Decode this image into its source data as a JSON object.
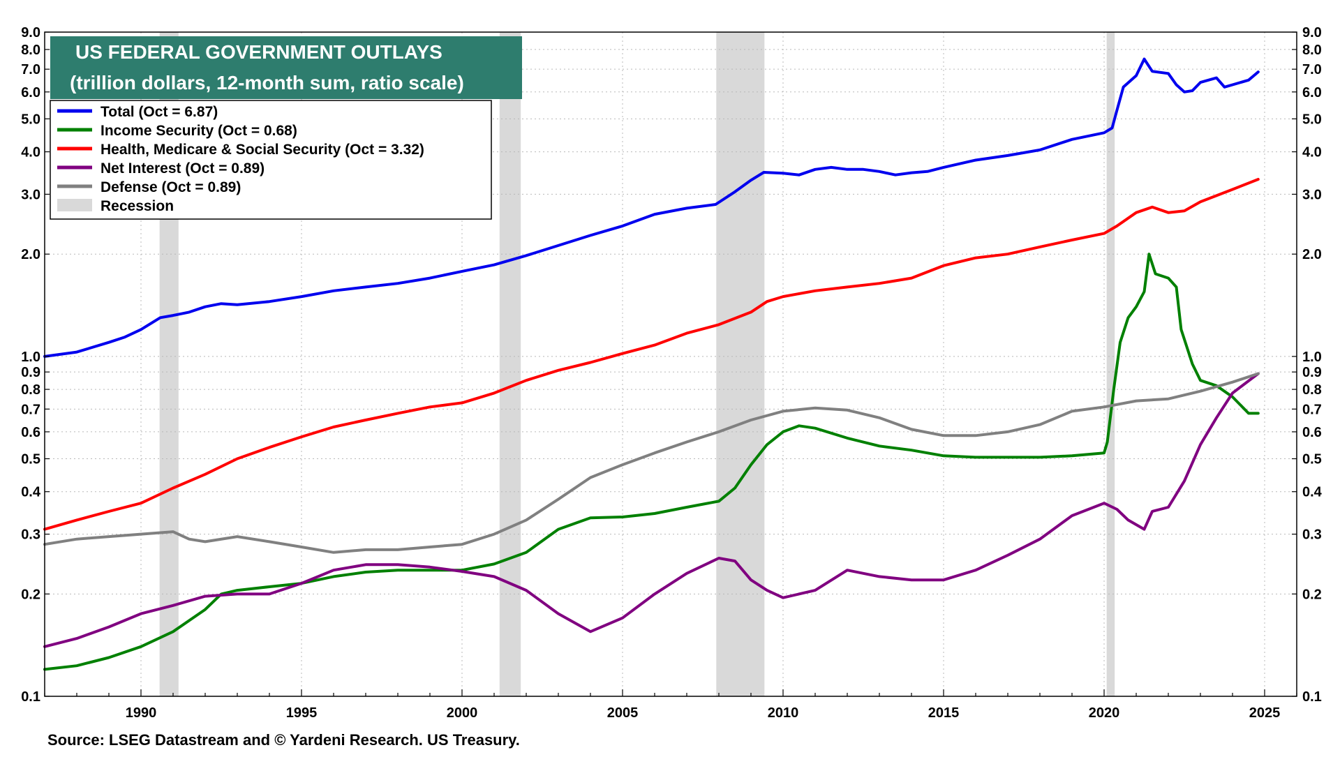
{
  "chart_data": {
    "type": "line",
    "title": "US FEDERAL GOVERNMENT OUTLAYS",
    "subtitle": "(trillion dollars, 12-month sum, ratio scale)",
    "source": "Source: LSEG Datastream and © Yardeni Research. US Treasury.",
    "y_scale": "log",
    "xlim": [
      1987,
      2026
    ],
    "ylim": [
      0.1,
      9.0
    ],
    "grid": true,
    "legend_position": "top-left",
    "x_ticks": [
      1990,
      1995,
      2000,
      2005,
      2010,
      2015,
      2020,
      2025
    ],
    "x_tick_labels": [
      "1990",
      "1995",
      "2000",
      "2005",
      "2010",
      "2015",
      "2020",
      "2025"
    ],
    "y_ticks": [
      0.1,
      0.2,
      0.3,
      0.4,
      0.5,
      0.6,
      0.7,
      0.8,
      0.9,
      1.0,
      2.0,
      3.0,
      4.0,
      5.0,
      6.0,
      7.0,
      8.0,
      9.0
    ],
    "y_tick_labels": [
      "0.1",
      "0.2",
      "0.3",
      "0.4",
      "0.5",
      "0.6",
      "0.7",
      "0.8",
      "0.9",
      "1.0",
      "2.0",
      "3.0",
      "4.0",
      "5.0",
      "6.0",
      "7.0",
      "8.0",
      "9.0"
    ],
    "recessions": [
      [
        1990.58,
        1991.17
      ],
      [
        2001.17,
        2001.83
      ],
      [
        2007.92,
        2009.42
      ],
      [
        2020.08,
        2020.33
      ]
    ],
    "recession_legend": "Recession",
    "series": [
      {
        "name": "Total",
        "legend": "Total  (Oct = 6.87)",
        "color": "#0000ee",
        "points": [
          [
            1987.0,
            1.0
          ],
          [
            1988.0,
            1.03
          ],
          [
            1989.0,
            1.1
          ],
          [
            1989.5,
            1.14
          ],
          [
            1990.0,
            1.2
          ],
          [
            1990.6,
            1.3
          ],
          [
            1991.0,
            1.32
          ],
          [
            1991.5,
            1.35
          ],
          [
            1992.0,
            1.4
          ],
          [
            1992.5,
            1.43
          ],
          [
            1993.0,
            1.42
          ],
          [
            1994.0,
            1.45
          ],
          [
            1995.0,
            1.5
          ],
          [
            1996.0,
            1.56
          ],
          [
            1997.0,
            1.6
          ],
          [
            1998.0,
            1.64
          ],
          [
            1999.0,
            1.7
          ],
          [
            2000.0,
            1.78
          ],
          [
            2001.0,
            1.86
          ],
          [
            2002.0,
            1.98
          ],
          [
            2003.0,
            2.12
          ],
          [
            2004.0,
            2.27
          ],
          [
            2005.0,
            2.42
          ],
          [
            2006.0,
            2.62
          ],
          [
            2007.0,
            2.73
          ],
          [
            2007.9,
            2.8
          ],
          [
            2008.5,
            3.05
          ],
          [
            2009.0,
            3.3
          ],
          [
            2009.4,
            3.48
          ],
          [
            2010.0,
            3.46
          ],
          [
            2010.5,
            3.42
          ],
          [
            2011.0,
            3.55
          ],
          [
            2011.5,
            3.6
          ],
          [
            2012.0,
            3.55
          ],
          [
            2012.5,
            3.55
          ],
          [
            2013.0,
            3.5
          ],
          [
            2013.5,
            3.42
          ],
          [
            2014.0,
            3.47
          ],
          [
            2014.5,
            3.5
          ],
          [
            2015.0,
            3.6
          ],
          [
            2016.0,
            3.78
          ],
          [
            2017.0,
            3.9
          ],
          [
            2018.0,
            4.05
          ],
          [
            2019.0,
            4.35
          ],
          [
            2020.0,
            4.55
          ],
          [
            2020.25,
            4.7
          ],
          [
            2020.4,
            5.3
          ],
          [
            2020.6,
            6.2
          ],
          [
            2021.0,
            6.7
          ],
          [
            2021.25,
            7.5
          ],
          [
            2021.5,
            6.9
          ],
          [
            2022.0,
            6.8
          ],
          [
            2022.25,
            6.3
          ],
          [
            2022.5,
            6.0
          ],
          [
            2022.75,
            6.05
          ],
          [
            2023.0,
            6.4
          ],
          [
            2023.5,
            6.6
          ],
          [
            2023.75,
            6.2
          ],
          [
            2024.0,
            6.3
          ],
          [
            2024.5,
            6.5
          ],
          [
            2024.8,
            6.87
          ]
        ]
      },
      {
        "name": "Health, Medicare & Social Security",
        "legend": "Health, Medicare & Social Security  (Oct = 3.32)",
        "color": "#ff0000",
        "points": [
          [
            1987.0,
            0.31
          ],
          [
            1988.0,
            0.33
          ],
          [
            1989.0,
            0.35
          ],
          [
            1990.0,
            0.37
          ],
          [
            1991.0,
            0.41
          ],
          [
            1992.0,
            0.45
          ],
          [
            1993.0,
            0.5
          ],
          [
            1994.0,
            0.54
          ],
          [
            1995.0,
            0.58
          ],
          [
            1996.0,
            0.62
          ],
          [
            1997.0,
            0.65
          ],
          [
            1998.0,
            0.68
          ],
          [
            1999.0,
            0.71
          ],
          [
            2000.0,
            0.73
          ],
          [
            2001.0,
            0.78
          ],
          [
            2002.0,
            0.85
          ],
          [
            2003.0,
            0.91
          ],
          [
            2004.0,
            0.96
          ],
          [
            2005.0,
            1.02
          ],
          [
            2006.0,
            1.08
          ],
          [
            2007.0,
            1.17
          ],
          [
            2008.0,
            1.24
          ],
          [
            2009.0,
            1.35
          ],
          [
            2009.5,
            1.45
          ],
          [
            2010.0,
            1.5
          ],
          [
            2011.0,
            1.56
          ],
          [
            2012.0,
            1.6
          ],
          [
            2013.0,
            1.64
          ],
          [
            2014.0,
            1.7
          ],
          [
            2015.0,
            1.85
          ],
          [
            2016.0,
            1.95
          ],
          [
            2017.0,
            2.0
          ],
          [
            2018.0,
            2.1
          ],
          [
            2019.0,
            2.2
          ],
          [
            2020.0,
            2.3
          ],
          [
            2020.4,
            2.42
          ],
          [
            2021.0,
            2.65
          ],
          [
            2021.5,
            2.75
          ],
          [
            2022.0,
            2.65
          ],
          [
            2022.5,
            2.68
          ],
          [
            2023.0,
            2.85
          ],
          [
            2024.0,
            3.1
          ],
          [
            2024.8,
            3.32
          ]
        ]
      },
      {
        "name": "Income Security",
        "legend": "Income Security (Oct = 0.68)",
        "color": "#008000",
        "points": [
          [
            1987.0,
            0.12
          ],
          [
            1988.0,
            0.123
          ],
          [
            1989.0,
            0.13
          ],
          [
            1990.0,
            0.14
          ],
          [
            1991.0,
            0.155
          ],
          [
            1992.0,
            0.18
          ],
          [
            1992.5,
            0.2
          ],
          [
            1993.0,
            0.205
          ],
          [
            1994.0,
            0.21
          ],
          [
            1995.0,
            0.215
          ],
          [
            1996.0,
            0.225
          ],
          [
            1997.0,
            0.232
          ],
          [
            1998.0,
            0.235
          ],
          [
            1999.0,
            0.235
          ],
          [
            2000.0,
            0.235
          ],
          [
            2001.0,
            0.245
          ],
          [
            2002.0,
            0.265
          ],
          [
            2003.0,
            0.31
          ],
          [
            2004.0,
            0.335
          ],
          [
            2005.0,
            0.337
          ],
          [
            2006.0,
            0.345
          ],
          [
            2007.0,
            0.36
          ],
          [
            2008.0,
            0.375
          ],
          [
            2008.5,
            0.41
          ],
          [
            2009.0,
            0.48
          ],
          [
            2009.5,
            0.55
          ],
          [
            2010.0,
            0.6
          ],
          [
            2010.5,
            0.625
          ],
          [
            2011.0,
            0.615
          ],
          [
            2012.0,
            0.575
          ],
          [
            2013.0,
            0.545
          ],
          [
            2014.0,
            0.53
          ],
          [
            2015.0,
            0.51
          ],
          [
            2016.0,
            0.505
          ],
          [
            2017.0,
            0.505
          ],
          [
            2018.0,
            0.505
          ],
          [
            2019.0,
            0.51
          ],
          [
            2020.0,
            0.52
          ],
          [
            2020.1,
            0.56
          ],
          [
            2020.3,
            0.8
          ],
          [
            2020.5,
            1.1
          ],
          [
            2020.75,
            1.3
          ],
          [
            2021.0,
            1.4
          ],
          [
            2021.25,
            1.55
          ],
          [
            2021.4,
            2.0
          ],
          [
            2021.6,
            1.75
          ],
          [
            2022.0,
            1.7
          ],
          [
            2022.25,
            1.6
          ],
          [
            2022.4,
            1.2
          ],
          [
            2022.75,
            0.95
          ],
          [
            2023.0,
            0.85
          ],
          [
            2023.5,
            0.82
          ],
          [
            2024.0,
            0.76
          ],
          [
            2024.5,
            0.68
          ],
          [
            2024.8,
            0.68
          ]
        ]
      },
      {
        "name": "Net Interest",
        "legend": "Net Interest (Oct = 0.89)",
        "color": "#800080",
        "points": [
          [
            1987.0,
            0.14
          ],
          [
            1988.0,
            0.148
          ],
          [
            1989.0,
            0.16
          ],
          [
            1990.0,
            0.175
          ],
          [
            1991.0,
            0.185
          ],
          [
            1992.0,
            0.197
          ],
          [
            1993.0,
            0.2
          ],
          [
            1994.0,
            0.2
          ],
          [
            1995.0,
            0.215
          ],
          [
            1996.0,
            0.235
          ],
          [
            1997.0,
            0.244
          ],
          [
            1998.0,
            0.244
          ],
          [
            1999.0,
            0.24
          ],
          [
            2000.0,
            0.233
          ],
          [
            2001.0,
            0.225
          ],
          [
            2002.0,
            0.205
          ],
          [
            2003.0,
            0.175
          ],
          [
            2004.0,
            0.155
          ],
          [
            2005.0,
            0.17
          ],
          [
            2006.0,
            0.2
          ],
          [
            2007.0,
            0.23
          ],
          [
            2008.0,
            0.255
          ],
          [
            2008.5,
            0.25
          ],
          [
            2009.0,
            0.22
          ],
          [
            2009.5,
            0.205
          ],
          [
            2010.0,
            0.195
          ],
          [
            2011.0,
            0.205
          ],
          [
            2012.0,
            0.235
          ],
          [
            2013.0,
            0.225
          ],
          [
            2014.0,
            0.22
          ],
          [
            2015.0,
            0.22
          ],
          [
            2016.0,
            0.235
          ],
          [
            2017.0,
            0.26
          ],
          [
            2018.0,
            0.29
          ],
          [
            2019.0,
            0.34
          ],
          [
            2020.0,
            0.37
          ],
          [
            2020.4,
            0.355
          ],
          [
            2020.75,
            0.33
          ],
          [
            2021.25,
            0.31
          ],
          [
            2021.5,
            0.35
          ],
          [
            2022.0,
            0.36
          ],
          [
            2022.5,
            0.43
          ],
          [
            2023.0,
            0.55
          ],
          [
            2023.5,
            0.66
          ],
          [
            2024.0,
            0.78
          ],
          [
            2024.8,
            0.89
          ]
        ]
      },
      {
        "name": "Defense",
        "legend": "Defense (Oct = 0.89)",
        "color": "#808080",
        "points": [
          [
            1987.0,
            0.28
          ],
          [
            1988.0,
            0.29
          ],
          [
            1989.0,
            0.295
          ],
          [
            1990.0,
            0.3
          ],
          [
            1991.0,
            0.305
          ],
          [
            1991.5,
            0.29
          ],
          [
            1992.0,
            0.285
          ],
          [
            1993.0,
            0.295
          ],
          [
            1994.0,
            0.285
          ],
          [
            1995.0,
            0.275
          ],
          [
            1996.0,
            0.265
          ],
          [
            1997.0,
            0.27
          ],
          [
            1998.0,
            0.27
          ],
          [
            1999.0,
            0.275
          ],
          [
            2000.0,
            0.28
          ],
          [
            2001.0,
            0.3
          ],
          [
            2002.0,
            0.33
          ],
          [
            2003.0,
            0.38
          ],
          [
            2004.0,
            0.44
          ],
          [
            2005.0,
            0.48
          ],
          [
            2006.0,
            0.52
          ],
          [
            2007.0,
            0.56
          ],
          [
            2008.0,
            0.6
          ],
          [
            2009.0,
            0.65
          ],
          [
            2010.0,
            0.69
          ],
          [
            2011.0,
            0.705
          ],
          [
            2012.0,
            0.695
          ],
          [
            2013.0,
            0.66
          ],
          [
            2014.0,
            0.61
          ],
          [
            2015.0,
            0.585
          ],
          [
            2016.0,
            0.585
          ],
          [
            2017.0,
            0.6
          ],
          [
            2018.0,
            0.63
          ],
          [
            2019.0,
            0.69
          ],
          [
            2020.0,
            0.71
          ],
          [
            2021.0,
            0.74
          ],
          [
            2022.0,
            0.75
          ],
          [
            2023.0,
            0.79
          ],
          [
            2024.0,
            0.84
          ],
          [
            2024.8,
            0.89
          ]
        ]
      }
    ]
  }
}
